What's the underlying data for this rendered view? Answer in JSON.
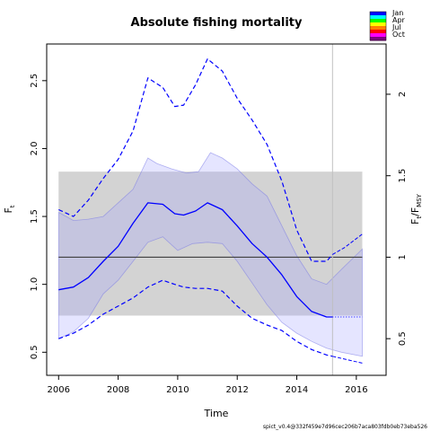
{
  "chart_data": {
    "type": "line",
    "title": "Absolute fishing mortality",
    "xlabel": "Time",
    "ylabel": "F",
    "ylabel_sub": "t",
    "y2label": "F",
    "y2label_sub_a": "t",
    "y2label_sub_b": "MSY",
    "xlim": [
      2005.6,
      2017.0
    ],
    "ylim": [
      0.33,
      2.77
    ],
    "y2_scale_fmsy": 1.2,
    "x_ticks": [
      2006,
      2008,
      2010,
      2012,
      2014,
      2016
    ],
    "x_tick_labels": [
      "2006",
      "2008",
      "2010",
      "2012",
      "2014",
      "2016"
    ],
    "y_ticks": [
      0.5,
      1.0,
      1.5,
      2.0,
      2.5
    ],
    "y_tick_labels": [
      "0.5",
      "1.0",
      "1.5",
      "2.0",
      "2.5"
    ],
    "y2_ticks": [
      0.5,
      1,
      1.5,
      2
    ],
    "y2_tick_labels": [
      "0.5",
      "1",
      "1.5",
      "2"
    ],
    "fmsy_line": 1.2,
    "fmsy_band": [
      0.77,
      1.83
    ],
    "last_obs_x": 2015.2,
    "series": [
      {
        "name": "Ft estimate",
        "x": [
          2006.0,
          2006.5,
          2007.0,
          2007.5,
          2008.0,
          2008.5,
          2009.0,
          2009.5,
          2009.9,
          2010.2,
          2010.6,
          2011.0,
          2011.5,
          2012.0,
          2012.5,
          2013.0,
          2013.5,
          2014.0,
          2014.5,
          2015.0,
          2015.2
        ],
        "y": [
          0.96,
          0.98,
          1.05,
          1.17,
          1.28,
          1.45,
          1.6,
          1.59,
          1.52,
          1.51,
          1.54,
          1.6,
          1.55,
          1.43,
          1.3,
          1.2,
          1.07,
          0.91,
          0.8,
          0.76,
          0.76
        ]
      },
      {
        "name": "Ft upper 95%",
        "x": [
          2006.0,
          2006.5,
          2007.0,
          2007.5,
          2008.0,
          2008.5,
          2009.0,
          2009.5,
          2009.9,
          2010.2,
          2010.6,
          2011.0,
          2011.5,
          2012.0,
          2012.5,
          2013.0,
          2013.5,
          2014.0,
          2014.5,
          2015.0,
          2015.2
        ],
        "y": [
          1.55,
          1.5,
          1.62,
          1.78,
          1.92,
          2.13,
          2.52,
          2.45,
          2.31,
          2.32,
          2.47,
          2.66,
          2.57,
          2.37,
          2.21,
          2.03,
          1.76,
          1.4,
          1.17,
          1.17,
          1.22
        ]
      },
      {
        "name": "Ft lower 95%",
        "x": [
          2006.0,
          2006.5,
          2007.0,
          2007.5,
          2008.0,
          2008.5,
          2009.0,
          2009.5,
          2009.9,
          2010.2,
          2010.6,
          2011.0,
          2011.5,
          2012.0,
          2012.5,
          2013.0,
          2013.5,
          2014.0,
          2014.5,
          2015.0,
          2015.2
        ],
        "y": [
          0.6,
          0.64,
          0.7,
          0.78,
          0.84,
          0.9,
          0.98,
          1.03,
          1.0,
          0.98,
          0.97,
          0.97,
          0.95,
          0.84,
          0.75,
          0.7,
          0.66,
          0.58,
          0.52,
          0.48,
          0.47
        ]
      },
      {
        "name": "Ft forecast",
        "x": [
          2015.2,
          2016.2
        ],
        "y": [
          0.76,
          0.76
        ]
      },
      {
        "name": "Ft upper forecast",
        "x": [
          2015.2,
          2015.6,
          2016.2
        ],
        "y": [
          1.22,
          1.27,
          1.37
        ]
      },
      {
        "name": "Ft lower forecast",
        "x": [
          2015.2,
          2015.6,
          2016.2
        ],
        "y": [
          0.47,
          0.45,
          0.42
        ]
      }
    ],
    "seasonal_band_upper": {
      "x": [
        2006.0,
        2006.5,
        2007.0,
        2007.5,
        2008.0,
        2008.5,
        2009.0,
        2009.3,
        2009.8,
        2010.3,
        2010.7,
        2011.1,
        2011.5,
        2012.0,
        2012.5,
        2013.0,
        2013.5,
        2014.0,
        2014.5,
        2015.0,
        2015.5,
        2016.2
      ],
      "y": [
        1.53,
        1.47,
        1.48,
        1.5,
        1.6,
        1.7,
        1.93,
        1.89,
        1.85,
        1.82,
        1.83,
        1.97,
        1.93,
        1.85,
        1.74,
        1.65,
        1.43,
        1.21,
        1.04,
        1.0,
        1.11,
        1.26
      ]
    },
    "seasonal_band_lower": {
      "x": [
        2006.0,
        2006.5,
        2007.0,
        2007.5,
        2008.0,
        2008.5,
        2009.0,
        2009.5,
        2010.0,
        2010.5,
        2011.0,
        2011.5,
        2012.0,
        2012.5,
        2013.0,
        2013.5,
        2014.0,
        2014.5,
        2015.0,
        2015.5,
        2016.2
      ],
      "y": [
        0.6,
        0.65,
        0.75,
        0.93,
        1.03,
        1.17,
        1.31,
        1.35,
        1.25,
        1.3,
        1.31,
        1.3,
        1.17,
        1.01,
        0.85,
        0.72,
        0.64,
        0.58,
        0.53,
        0.5,
        0.47
      ]
    },
    "legend": {
      "placement": "top-right",
      "entries": [
        "Jan",
        "Apr",
        "Jul",
        "Oct"
      ],
      "colors": [
        "#0000ff",
        "#00ffff",
        "#00ff00",
        "#ffff00",
        "#ff8000",
        "#ff0000",
        "#ff00ff",
        "#800080"
      ]
    },
    "colors": {
      "estimate": "#0000ff",
      "ci_fill": "rgba(160,160,255,0.28)",
      "fmsy_band": "#d3d3d3",
      "fmsy_line": "#404040",
      "vline": "#c0c0c0"
    },
    "footer": "spict_v0.4@332f459e7d96cec206b7aca803fdb0eb73eba526"
  }
}
